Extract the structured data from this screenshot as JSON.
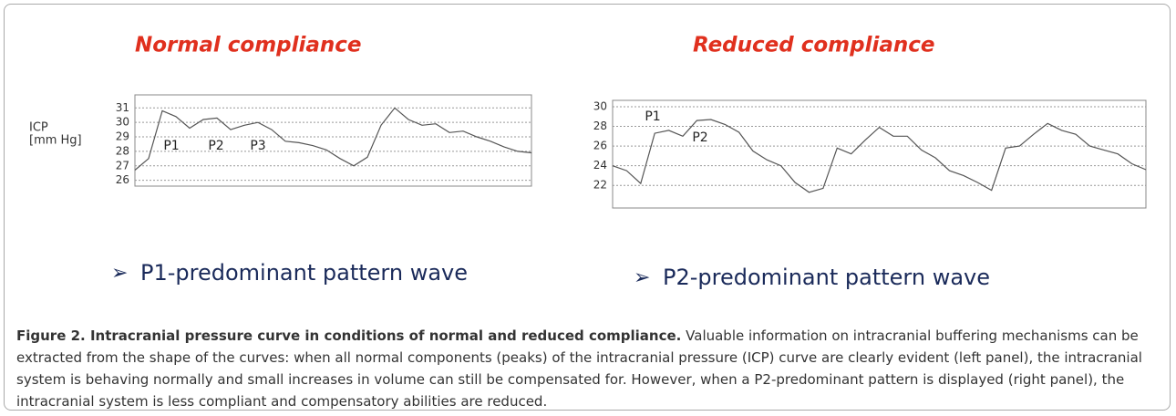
{
  "chart_data": [
    {
      "type": "line",
      "title": "Normal compliance",
      "ylabel": [
        "ICP",
        "[mm Hg]"
      ],
      "values": [
        26.7,
        27.5,
        30.8,
        30.4,
        29.6,
        30.2,
        30.3,
        29.5,
        29.8,
        30,
        29.5,
        28.7,
        28.6,
        28.4,
        28.1,
        27.5,
        27,
        27.6,
        29.8,
        31,
        30.2,
        29.8,
        29.9,
        29.3,
        29.4,
        29,
        28.7,
        28.3,
        28,
        27.9
      ],
      "color": "#555555",
      "ylim": [
        25.6,
        31.9
      ],
      "yticks": [
        26,
        27,
        28,
        29,
        30,
        31
      ],
      "grid": true,
      "annotations": [
        "P1",
        "P2",
        "P3"
      ],
      "subtitle": "P1-predominant pattern wave"
    },
    {
      "type": "line",
      "title": "Reduced compliance",
      "values": [
        24,
        23.5,
        22.2,
        27.3,
        27.6,
        27,
        28.6,
        28.7,
        28.2,
        27.4,
        25.5,
        24.6,
        24,
        22.3,
        21.3,
        21.7,
        25.8,
        25.2,
        26.6,
        27.9,
        27,
        27,
        25.6,
        24.8,
        23.5,
        23,
        22.3,
        21.5,
        25.8,
        26,
        27.2,
        28.3,
        27.6,
        27.2,
        26,
        25.6,
        25.2,
        24.2,
        23.6
      ],
      "color": "#555555",
      "ylim": [
        19.7,
        30.65
      ],
      "yticks": [
        22,
        24,
        26,
        28,
        30
      ],
      "grid": true,
      "annotations": [
        "P1",
        "P2"
      ],
      "subtitle": "P2-predominant pattern wave"
    }
  ],
  "caption": {
    "title": "Figure 2. Intracranial pressure curve in conditions of normal and reduced compliance.",
    "text": "Valuable information on intracranial buffering mechanisms can be extracted from the shape of the curves: when all normal components (peaks) of the intracranial pressure (ICP) curve are clearly evident (left panel), the intracranial system is behaving normally and small increases in volume can still be compensated for. However, when a P2-predominant pattern is displayed (right panel), the intracranial system is less compliant and compensatory abilities are reduced."
  }
}
